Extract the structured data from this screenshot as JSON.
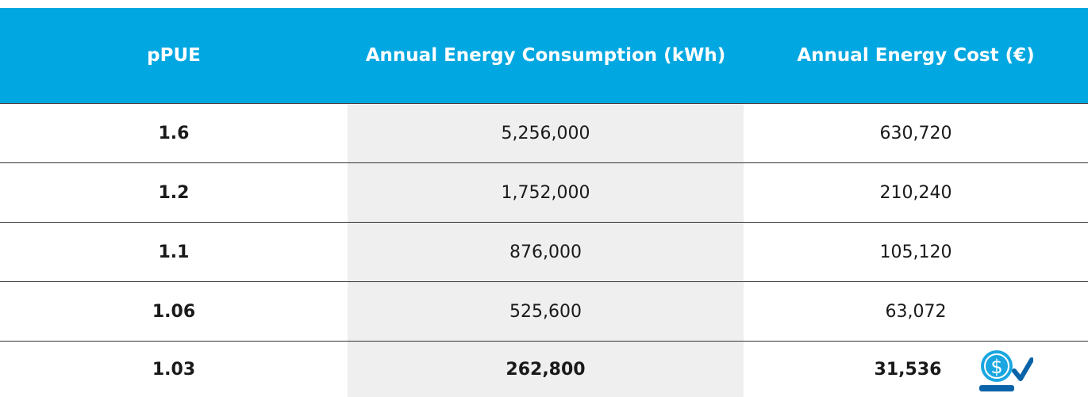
{
  "table": {
    "header": [
      "pPUE",
      "Annual Energy Consumption (kWh)",
      "Annual Energy Cost (€)"
    ],
    "rows": [
      [
        "1.6",
        "5,256,000",
        "630,720"
      ],
      [
        "1.2",
        "1,752,000",
        "210,240"
      ],
      [
        "1.1",
        "876,000",
        "105,120"
      ],
      [
        "1.06",
        "525,600",
        "63,072"
      ],
      [
        "1.03",
        "262,800",
        "31,536"
      ]
    ]
  }
}
